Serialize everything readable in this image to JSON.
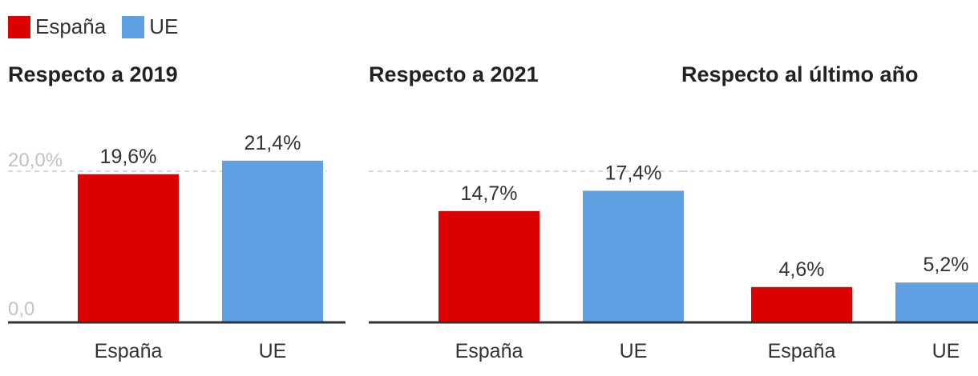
{
  "legend": [
    {
      "label": "España",
      "color": "#dd0000"
    },
    {
      "label": "UE",
      "color": "#5fa0e3"
    }
  ],
  "chart_data": [
    {
      "type": "bar",
      "title": "Respecto a 2019",
      "categories": [
        "España",
        "UE"
      ],
      "values": [
        19.6,
        21.4
      ],
      "value_labels": [
        "19,6%",
        "21,4%"
      ],
      "colors": [
        "#dd0000",
        "#5fa0e3"
      ],
      "ylim": [
        0,
        20
      ],
      "yticks": [
        "0,0",
        "20,0%"
      ],
      "gridline": 20
    },
    {
      "type": "bar",
      "title": "Respecto a 2021",
      "categories": [
        "España",
        "UE"
      ],
      "values": [
        14.7,
        17.4
      ],
      "value_labels": [
        "14,7%",
        "17,4%"
      ],
      "colors": [
        "#dd0000",
        "#5fa0e3"
      ],
      "ylim": [
        0,
        20
      ],
      "gridline": 20
    },
    {
      "type": "bar",
      "title": "Respecto al último año",
      "categories": [
        "España",
        "UE"
      ],
      "values": [
        4.6,
        5.2
      ],
      "value_labels": [
        "4,6%",
        "5,2%"
      ],
      "colors": [
        "#dd0000",
        "#5fa0e3"
      ],
      "ylim": [
        0,
        20
      ],
      "gridline": 20
    }
  ]
}
